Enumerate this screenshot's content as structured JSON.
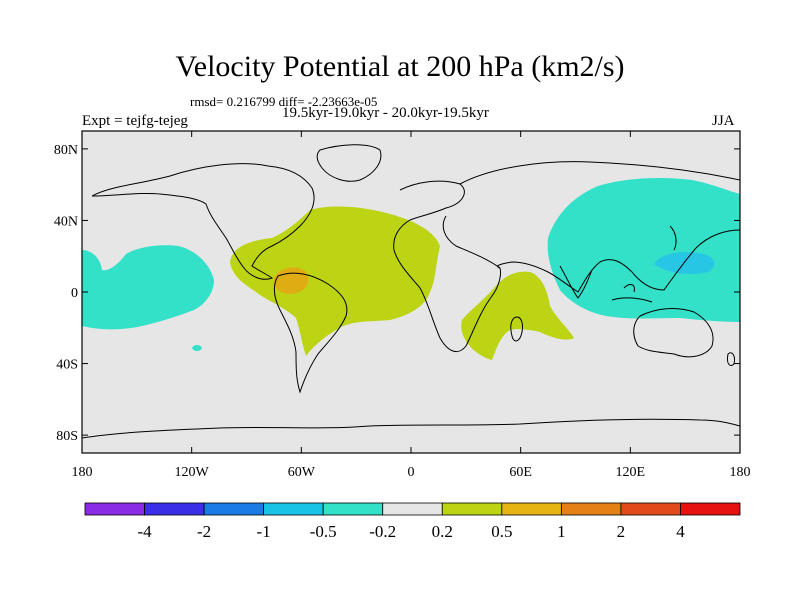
{
  "title": "Velocity Potential at 200 hPa (km2/s)",
  "stats_line": "rmsd= 0.216799 diff= -2.23663e-05",
  "period_line": "19.5kyr-19.0kyr - 20.0kyr-19.5kyr",
  "experiment_line": "Expt = tejfg-tejeg",
  "season": "JJA",
  "map": {
    "longitude_range": [
      -180,
      180
    ],
    "latitude_range": [
      -90,
      90
    ],
    "x_ticks": [
      {
        "lon": -180,
        "label": "180"
      },
      {
        "lon": -120,
        "label": "120W"
      },
      {
        "lon": -60,
        "label": "60W"
      },
      {
        "lon": 0,
        "label": "0"
      },
      {
        "lon": 60,
        "label": "60E"
      },
      {
        "lon": 120,
        "label": "120E"
      },
      {
        "lon": 180,
        "label": "180"
      }
    ],
    "y_ticks": [
      {
        "lat": 80,
        "label": "80N"
      },
      {
        "lat": 40,
        "label": "40N"
      },
      {
        "lat": 0,
        "label": "0"
      },
      {
        "lat": -40,
        "label": "40S"
      },
      {
        "lat": -80,
        "label": "80S"
      }
    ],
    "ocean_color": "#e6e6e6",
    "contour_regions": [
      {
        "name": "positive-anomaly-americas-atlantic",
        "level": "0.2 to 0.5",
        "color": "#bcd413"
      },
      {
        "name": "positive-anomaly-indian-ocean",
        "level": "0.2 to 0.5",
        "color": "#bcd413"
      },
      {
        "name": "positive-core-south-america",
        "level": "0.5 to 1",
        "color": "#e0ac14"
      },
      {
        "name": "negative-anomaly-west-pacific-asia",
        "level": "-0.5 to -0.2",
        "color": "#33e0c8"
      },
      {
        "name": "negative-anomaly-east-pacific",
        "level": "-0.5 to -0.2",
        "color": "#33e0c8"
      },
      {
        "name": "negative-core-west-pacific",
        "level": "-1 to -0.5",
        "color": "#26c6e4"
      }
    ]
  },
  "colorbar": {
    "colors": [
      "#8a2be6",
      "#3a2ee6",
      "#1a7ae6",
      "#18c3e6",
      "#33e0c8",
      "#e6e6e6",
      "#bcd413",
      "#e6b514",
      "#e38016",
      "#e34a1a",
      "#e61212"
    ],
    "labels": [
      "-4",
      "-2",
      "-1",
      "-0.5",
      "-0.2",
      "0.2",
      "0.5",
      "1",
      "2",
      "4"
    ]
  }
}
